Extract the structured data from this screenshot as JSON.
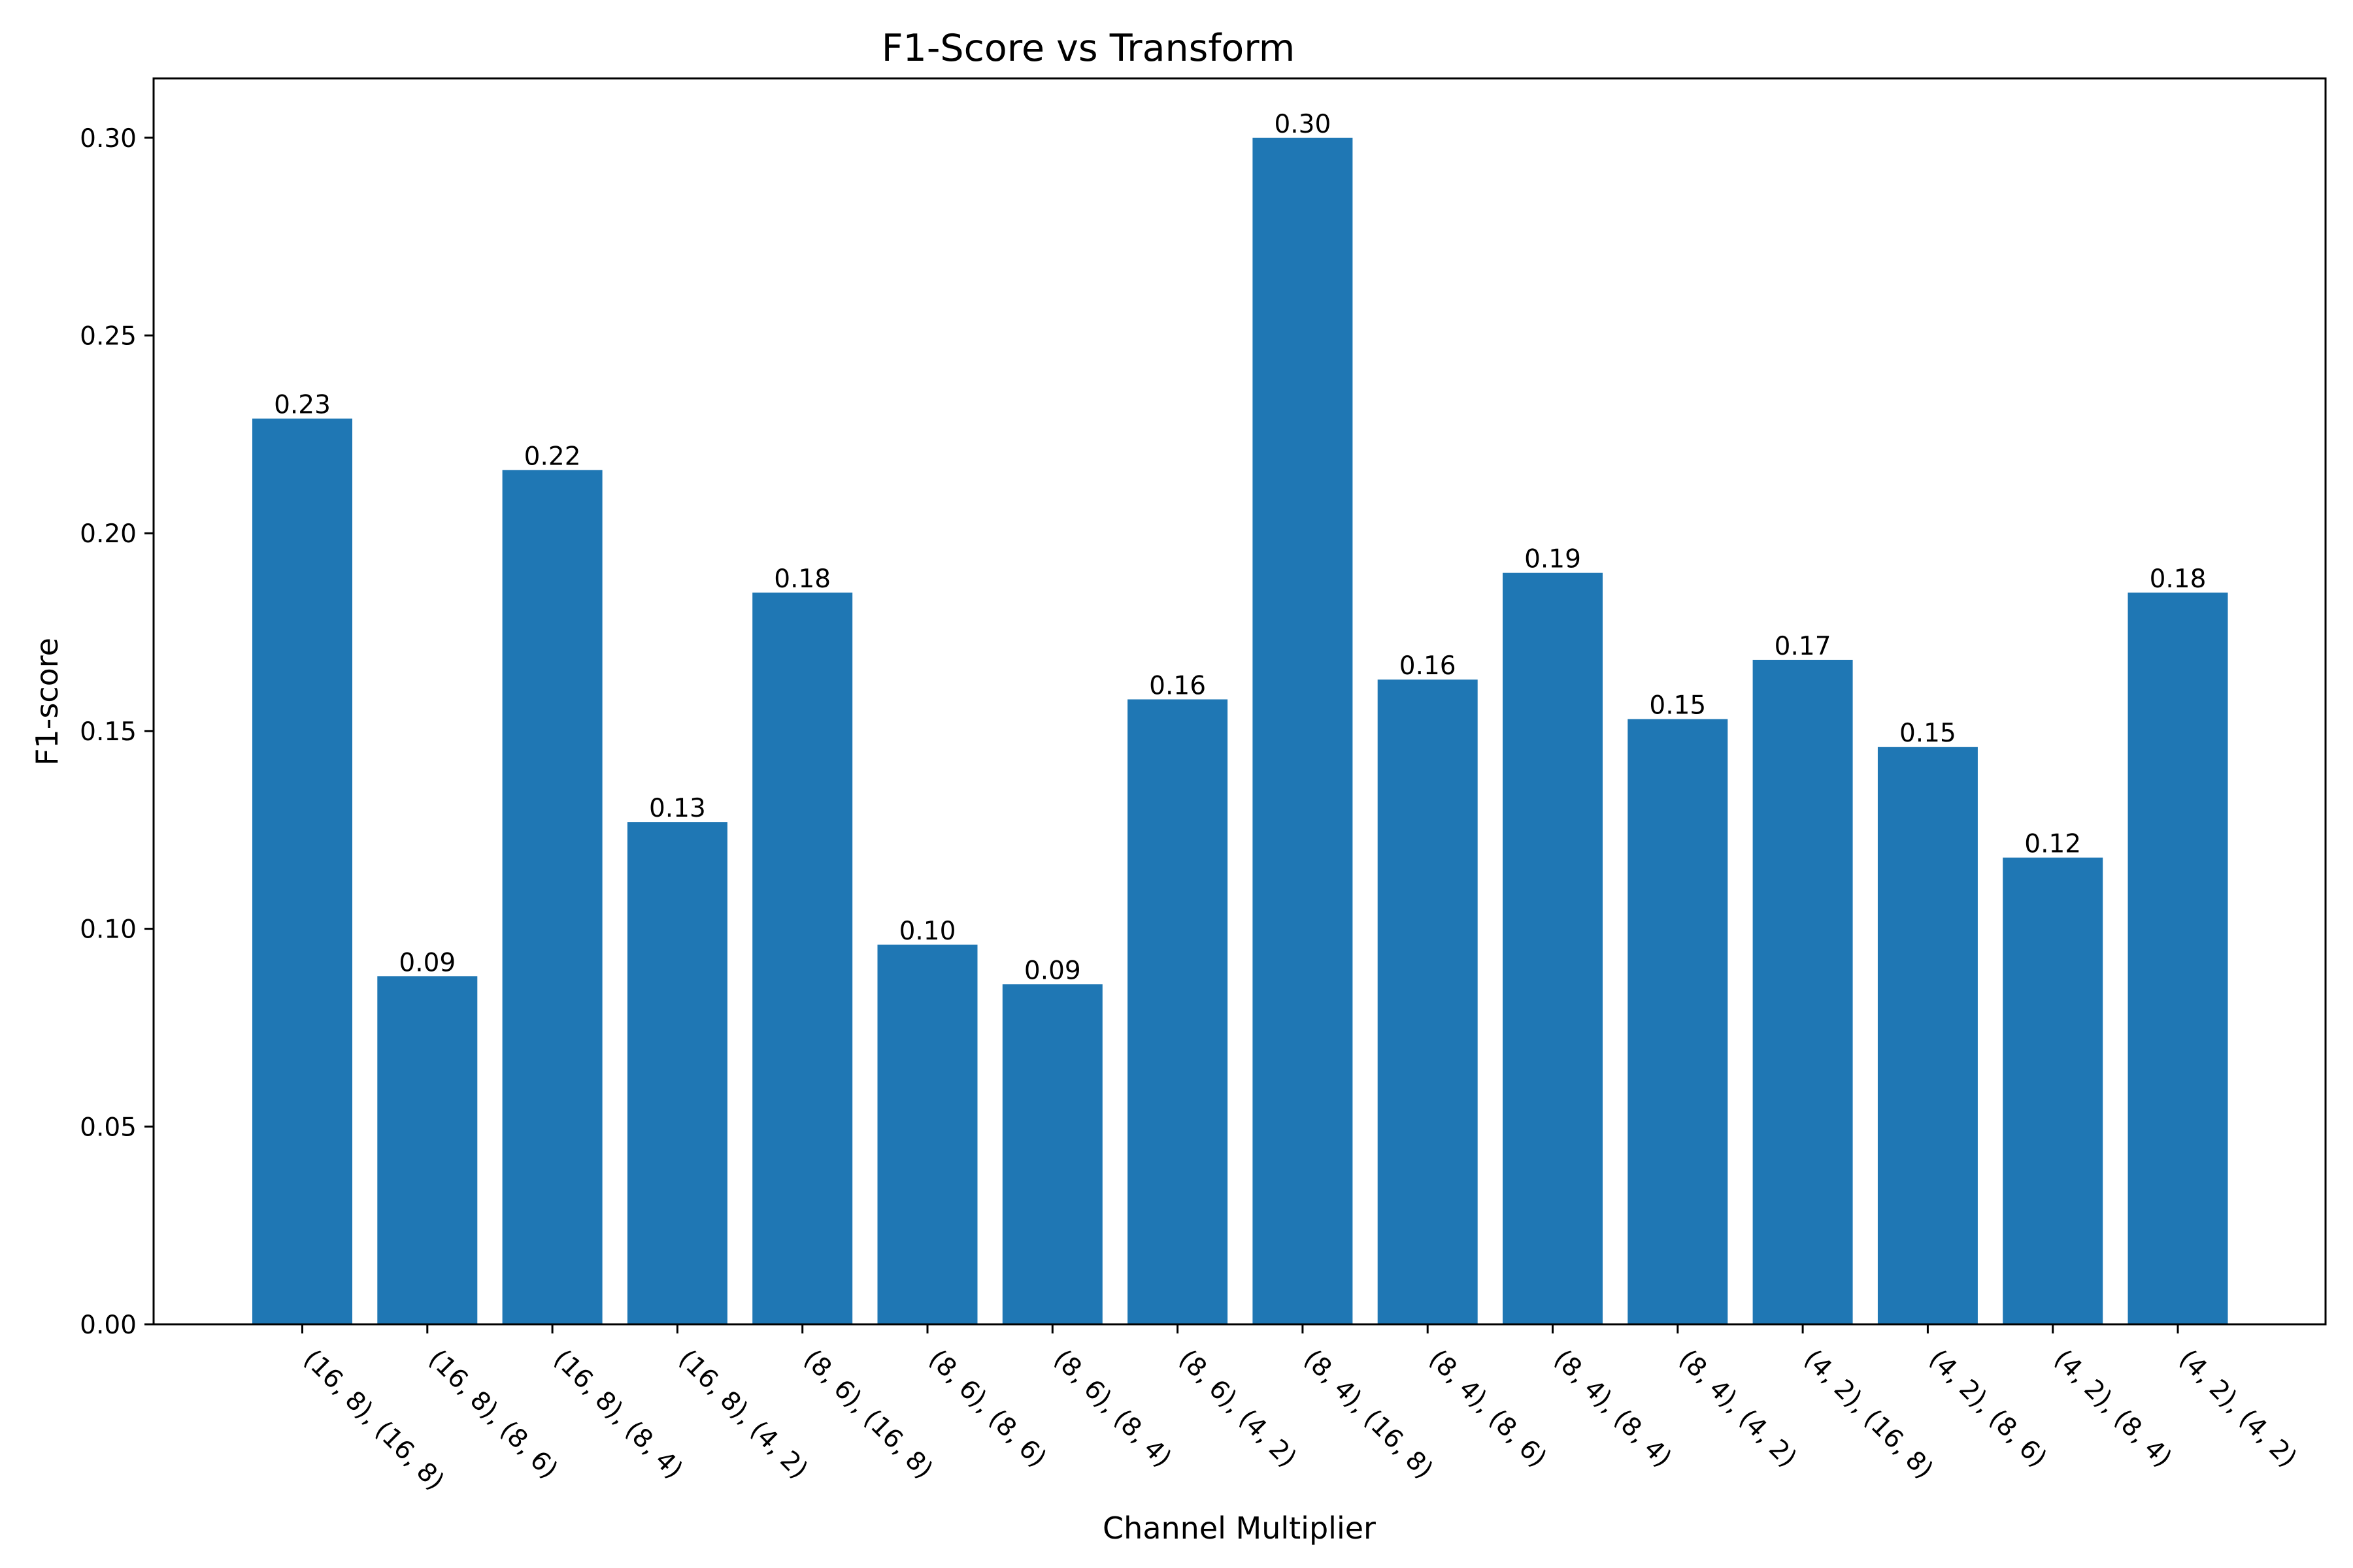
{
  "chart_data": {
    "type": "bar",
    "title": "F1-Score vs Transform",
    "xlabel": "Channel Multiplier",
    "ylabel": "F1-score",
    "categories": [
      "(16, 8), (16, 8)",
      "(16, 8), (8, 6)",
      "(16, 8), (8, 4)",
      "(16, 8), (4, 2)",
      "(8, 6), (16, 8)",
      "(8, 6), (8, 6)",
      "(8, 6), (8, 4)",
      "(8, 6), (4, 2)",
      "(8, 4), (16, 8)",
      "(8, 4), (8, 6)",
      "(8, 4), (8, 4)",
      "(8, 4), (4, 2)",
      "(4, 2), (16, 8)",
      "(4, 2), (8, 6)",
      "(4, 2), (8, 4)",
      "(4, 2), (4, 2)"
    ],
    "values": [
      0.229,
      0.088,
      0.216,
      0.127,
      0.185,
      0.096,
      0.086,
      0.158,
      0.3,
      0.163,
      0.19,
      0.153,
      0.168,
      0.146,
      0.118,
      0.185
    ],
    "data_labels": [
      "0.23",
      "0.09",
      "0.22",
      "0.13",
      "0.18",
      "0.10",
      "0.09",
      "0.16",
      "0.30",
      "0.16",
      "0.19",
      "0.15",
      "0.17",
      "0.15",
      "0.12",
      "0.18"
    ],
    "yticks": [
      "0.00",
      "0.05",
      "0.10",
      "0.15",
      "0.20",
      "0.25",
      "0.30"
    ],
    "ylim": [
      0,
      0.315
    ],
    "grid": false,
    "legend": "none",
    "bar_color": "#1f77b4"
  }
}
